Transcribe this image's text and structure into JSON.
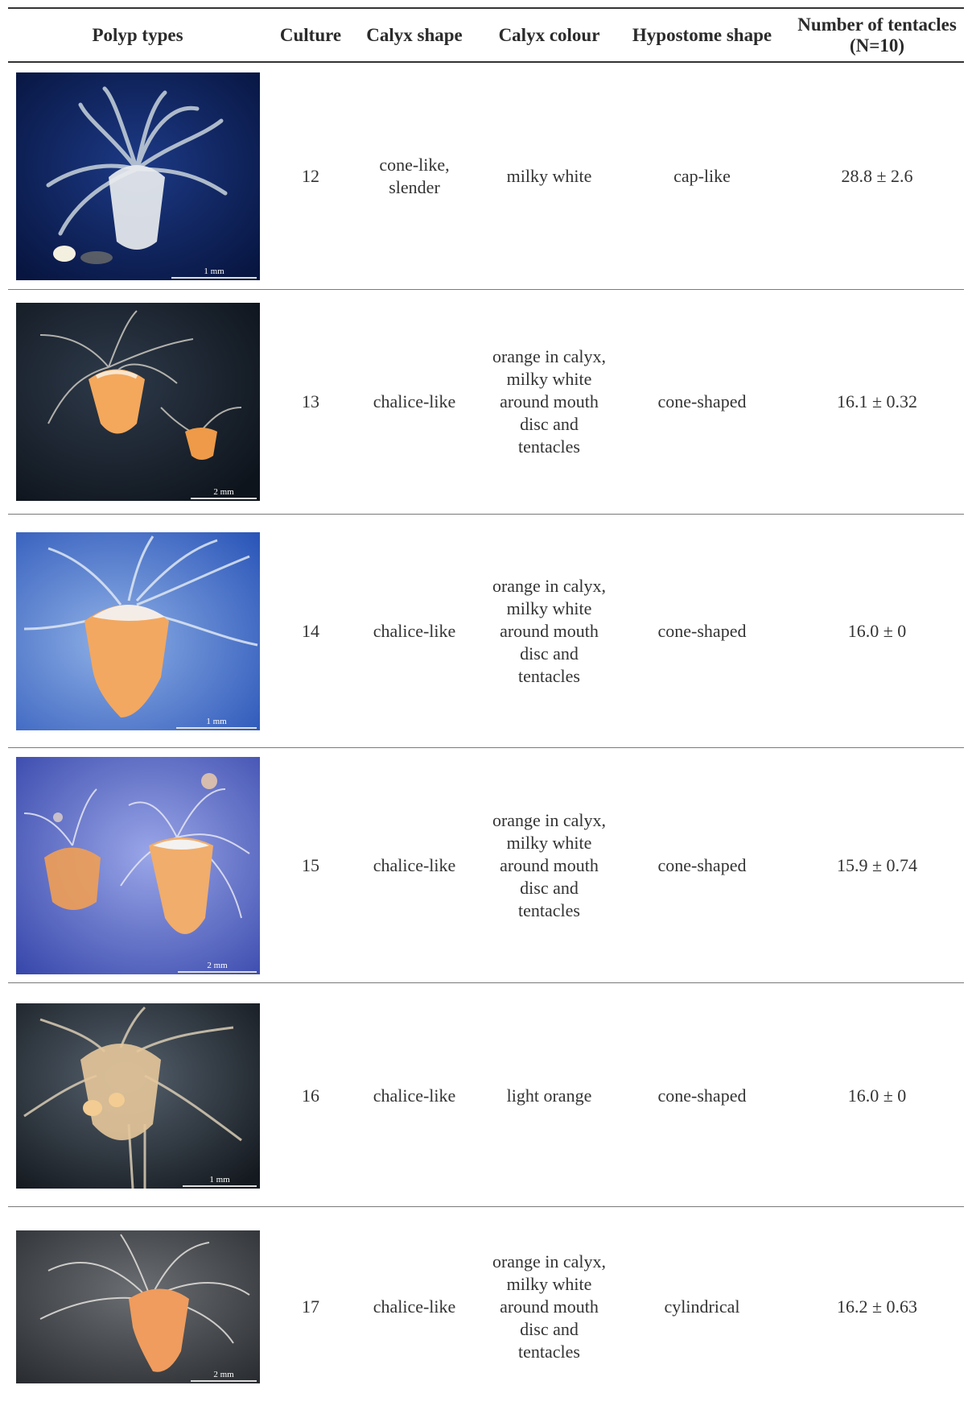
{
  "table": {
    "headers": {
      "polyp_types": "Polyp types",
      "culture": "Culture",
      "calyx_shape": "Calyx shape",
      "calyx_colour": "Calyx colour",
      "hypostome_shape": "Hypostome shape",
      "tentacles_line1": "Number of tentacles",
      "tentacles_line2": "(N=10)"
    },
    "rows": [
      {
        "culture": "12",
        "calyx_shape": "cone-like, slender",
        "calyx_colour": "milky white",
        "hypostome_shape": "cap-like",
        "tentacles": "28.8 ± 2.6",
        "scale": "1 mm"
      },
      {
        "culture": "13",
        "calyx_shape": "chalice-like",
        "calyx_colour": "orange in calyx, milky white around mouth disc and tentacles",
        "hypostome_shape": "cone-shaped",
        "tentacles": "16.1 ± 0.32",
        "scale": "2 mm"
      },
      {
        "culture": "14",
        "calyx_shape": "chalice-like",
        "calyx_colour": "orange in calyx, milky white around mouth disc and tentacles",
        "hypostome_shape": "cone-shaped",
        "tentacles": "16.0 ± 0",
        "scale": "1 mm"
      },
      {
        "culture": "15",
        "calyx_shape": "chalice-like",
        "calyx_colour": "orange in calyx, milky white around mouth disc and tentacles",
        "hypostome_shape": "cone-shaped",
        "tentacles": "15.9 ± 0.74",
        "scale": "2 mm"
      },
      {
        "culture": "16",
        "calyx_shape": "chalice-like",
        "calyx_colour": "light orange",
        "hypostome_shape": "cone-shaped",
        "tentacles": "16.0 ± 0",
        "scale": "1 mm"
      },
      {
        "culture": "17",
        "calyx_shape": "chalice-like",
        "calyx_colour": "orange in calyx, milky white around mouth disc and tentacles",
        "hypostome_shape": "cylindrical",
        "tentacles": "16.2 ± 0.63",
        "scale": "2 mm"
      }
    ]
  },
  "colors": {
    "photo_bg_row1": "#0b1e5a",
    "photo_bg_row2": "#1f2a38",
    "photo_bg_row3": "#3a66c0",
    "photo_bg_row4": "#4a5cbf",
    "photo_bg_row5": "#24303c",
    "photo_bg_row6": "#3a3d42",
    "polyp_white": "#e8ecef",
    "polyp_orange": "#f0a050"
  }
}
